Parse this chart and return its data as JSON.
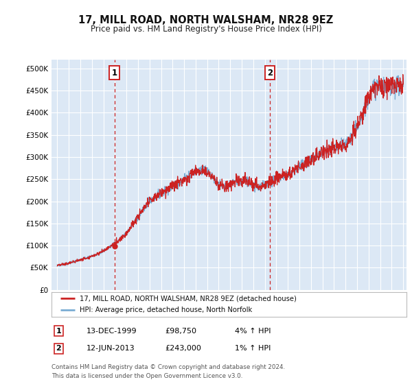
{
  "title": "17, MILL ROAD, NORTH WALSHAM, NR28 9EZ",
  "subtitle": "Price paid vs. HM Land Registry's House Price Index (HPI)",
  "legend_line1": "17, MILL ROAD, NORTH WALSHAM, NR28 9EZ (detached house)",
  "legend_line2": "HPI: Average price, detached house, North Norfolk",
  "footnote": "Contains HM Land Registry data © Crown copyright and database right 2024.\nThis data is licensed under the Open Government Licence v3.0.",
  "sale1_date_num": 1999.958,
  "sale1_price": 98750,
  "sale1_label": "1",
  "sale1_date_str": "13-DEC-1999",
  "sale1_price_str": "£98,750",
  "sale1_hpi": "4% ↑ HPI",
  "sale2_date_num": 2013.44,
  "sale2_price": 243000,
  "sale2_label": "2",
  "sale2_date_str": "12-JUN-2013",
  "sale2_price_str": "£243,000",
  "sale2_hpi": "1% ↑ HPI",
  "hpi_color": "#7aadd4",
  "price_color": "#cc2222",
  "plot_bg": "#dce8f5",
  "ylim": [
    0,
    520000
  ],
  "yticks": [
    0,
    50000,
    100000,
    150000,
    200000,
    250000,
    300000,
    350000,
    400000,
    450000,
    500000
  ],
  "xlim_left": 1994.5,
  "xlim_right": 2025.3
}
